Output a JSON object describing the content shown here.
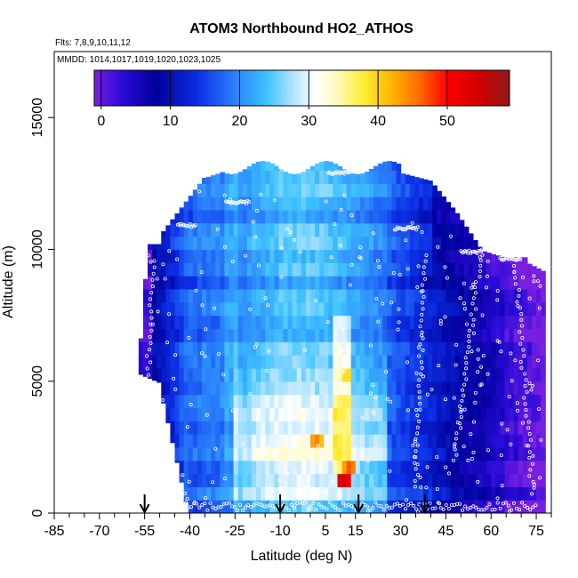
{
  "chart_data": {
    "type": "heatmap",
    "title": "ATOM3 Northbound HO2_ATHOS",
    "flights_label": "Flts: 7,8,9,10,11,12",
    "dates_label": "MMDD: 1014,1017,1019,1020,1023,1025",
    "xlabel": "Latitude (deg N)",
    "ylabel": "Altitude (m)",
    "xlim": [
      -85,
      80
    ],
    "ylim": [
      0,
      17500
    ],
    "x_major_ticks": [
      -85,
      -70,
      -55,
      -40,
      -25,
      -10,
      5,
      15,
      30,
      45,
      60,
      75
    ],
    "x_major_tick_labels": [
      "-85",
      "-70",
      "-55",
      "-40",
      "-25",
      "-10",
      "5",
      "15",
      "30",
      "45",
      "60",
      "75"
    ],
    "x_minor_ticks": [
      -80,
      -75,
      -65,
      -60,
      -50,
      -45,
      -35,
      -30,
      -20,
      -15,
      -5,
      0,
      10,
      20,
      25,
      35,
      40,
      50,
      55,
      65,
      70,
      80
    ],
    "y_ticks": [
      0,
      5000,
      10000,
      15000
    ],
    "y_tick_labels": [
      "0",
      "5000",
      "10000",
      "15000"
    ],
    "colorbar": {
      "min": -1,
      "max": 59,
      "ticks": [
        0,
        10,
        20,
        30,
        40,
        50
      ],
      "tick_labels": [
        "0",
        "10",
        "20",
        "30",
        "40",
        "50"
      ],
      "stops": [
        {
          "v": -1,
          "color": "#7a1fe0"
        },
        {
          "v": 3,
          "color": "#2a0bd8"
        },
        {
          "v": 8,
          "color": "#00009a"
        },
        {
          "v": 14,
          "color": "#0c2fe6"
        },
        {
          "v": 20,
          "color": "#2e8bff"
        },
        {
          "v": 24,
          "color": "#3fc3ff"
        },
        {
          "v": 28,
          "color": "#b9e6ff"
        },
        {
          "v": 31,
          "color": "#ffffff"
        },
        {
          "v": 34,
          "color": "#fffac0"
        },
        {
          "v": 38,
          "color": "#ffee33"
        },
        {
          "v": 42,
          "color": "#ffb400"
        },
        {
          "v": 46,
          "color": "#ff6a00"
        },
        {
          "v": 50,
          "color": "#ff0000"
        },
        {
          "v": 55,
          "color": "#cc0000"
        },
        {
          "v": 59,
          "color": "#8e1a1a"
        }
      ]
    },
    "profile_markers_lat": [
      -55,
      -10,
      16,
      38
    ],
    "coverage": {
      "lat_min": -57,
      "lat_max": 78,
      "alt_min": 0,
      "alt_max": 13500
    },
    "hotspots": [
      {
        "lat": 2,
        "alt": 2800,
        "value": 45
      },
      {
        "lat": 11,
        "alt": 1200,
        "value": 55
      },
      {
        "lat": 13,
        "alt": 1800,
        "value": 47
      },
      {
        "lat": 12,
        "alt": 5200,
        "value": 40
      },
      {
        "lat": 12,
        "alt": 4200,
        "value": 38
      }
    ]
  }
}
